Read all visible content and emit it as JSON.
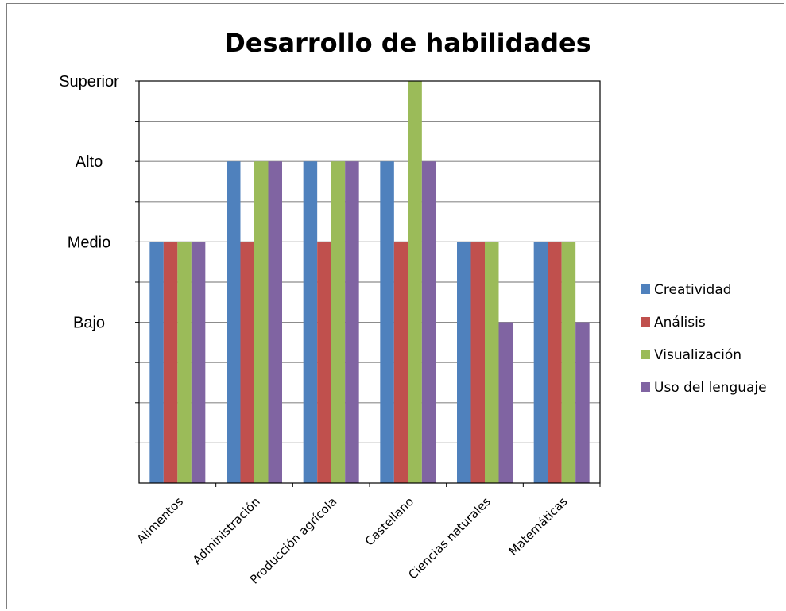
{
  "chart_data": {
    "type": "bar",
    "title": "Desarrollo de habilidades",
    "xlabel": "",
    "ylabel": "",
    "y_levels": [
      "Bajo",
      "Medio",
      "Alto",
      "Superior"
    ],
    "y_level_values": [
      2,
      3,
      4,
      5
    ],
    "ylim": [
      0,
      5
    ],
    "grid": true,
    "legend_position": "right",
    "categories": [
      "Alimentos",
      "Administración",
      "Producción agrícola",
      "Castellano",
      "Ciencias naturales",
      "Matemáticas"
    ],
    "series": [
      {
        "name": "Creatividad",
        "color": "#4f81bd",
        "values": [
          3,
          4,
          4,
          4,
          3,
          3
        ]
      },
      {
        "name": "Análisis",
        "color": "#c0504d",
        "values": [
          3,
          3,
          3,
          3,
          3,
          3
        ]
      },
      {
        "name": "Visualización",
        "color": "#9bbb59",
        "values": [
          3,
          4,
          4,
          5,
          3,
          3
        ]
      },
      {
        "name": "Uso del lenguaje",
        "color": "#8064a2",
        "values": [
          3,
          4,
          4,
          4,
          2,
          2
        ]
      }
    ]
  }
}
